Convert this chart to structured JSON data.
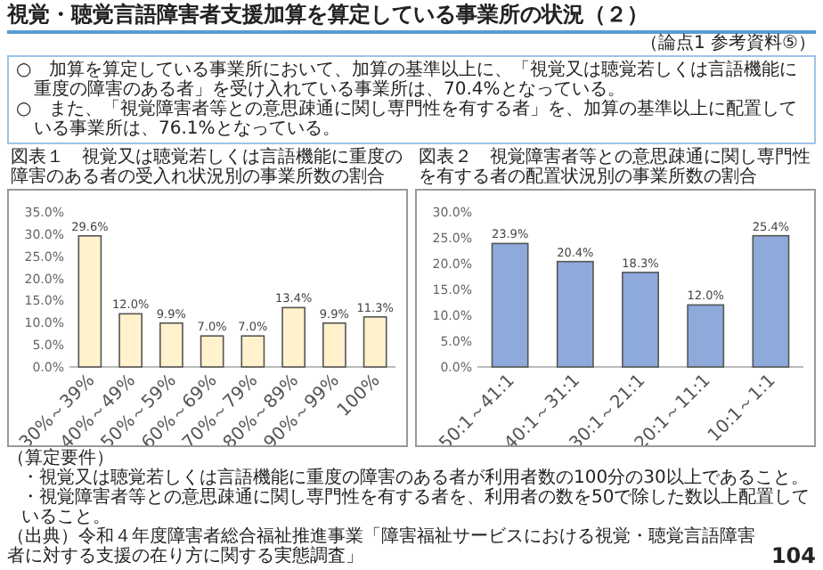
{
  "chart_data": [
    {
      "type": "other",
      "title": "視覚・聴覚言語障害者支援加算を算定している事業所の状況（２）",
      "subtitle": "（論点1 参考資料⑤）",
      "annotations": [
        "○　加算を算定している事業所において、加算の基準以上に、「視覚又は聴覚若しくは言語機能に重度の障害のある者」を受け入れている事業所は、70.4%となっている。",
        "○　また、「視覚障害者等との意思疎通に関し専門性を有する者」を、加算の基準以上に配置している事業所は、76.1%となっている。"
      ]
    },
    {
      "type": "bar",
      "title": "図表１　視覚又は聴覚若しくは言語機能に重度の障害のある者の受入れ状況別の事業所数の割合",
      "categories": [
        "30%～39%",
        "40%～49%",
        "50%～59%",
        "60%～69%",
        "70%～79%",
        "80%～89%",
        "90%～99%",
        "100%"
      ],
      "values": [
        29.6,
        12.0,
        9.9,
        7.0,
        7.0,
        13.4,
        9.9,
        11.3
      ],
      "value_labels": [
        "29.6%",
        "12.0%",
        "9.9%",
        "7.0%",
        "7.0%",
        "13.4%",
        "9.9%",
        "11.3%"
      ],
      "color": "#fff2cc",
      "ylim": [
        0,
        35
      ],
      "yticks": [
        {
          "value": 0,
          "label": "0.0%"
        },
        {
          "value": 5,
          "label": "5.0%"
        },
        {
          "value": 10,
          "label": "10.0%"
        },
        {
          "value": 15,
          "label": "15.0%"
        },
        {
          "value": 20,
          "label": "20.0%"
        },
        {
          "value": 25,
          "label": "25.0%"
        },
        {
          "value": 30,
          "label": "30.0%"
        },
        {
          "value": 35,
          "label": "35.0%"
        }
      ]
    },
    {
      "type": "bar",
      "title": "図表２　視覚障害者等との意思疎通に関し専門性を有する者の配置状況別の事業所数の割合",
      "categories": [
        "50:1～41:1",
        "40:1～31:1",
        "30:1～21:1",
        "20:1～11:1",
        "10:1～1:1"
      ],
      "values": [
        23.9,
        20.4,
        18.3,
        12.0,
        25.4
      ],
      "value_labels": [
        "23.9%",
        "20.4%",
        "18.3%",
        "12.0%",
        "25.4%"
      ],
      "color": "#8eaadb",
      "ylim": [
        0,
        30
      ],
      "yticks": [
        {
          "value": 0,
          "label": "0.0%"
        },
        {
          "value": 5,
          "label": "5.0%"
        },
        {
          "value": 10,
          "label": "10.0%"
        },
        {
          "value": 15,
          "label": "15.0%"
        },
        {
          "value": 20,
          "label": "20.0%"
        },
        {
          "value": 25,
          "label": "25.0%"
        },
        {
          "value": 30,
          "label": "30.0%"
        }
      ]
    },
    {
      "type": "other",
      "annotations": [
        "（算定要件）",
        "・視覚又は聴覚若しくは言語機能に重度の障害のある者が利用者数の100分の30以上であること。",
        "・視覚障害者等との意思疎通に関し専門性を有する者を、利用者の数を50で除した数以上配置していること。",
        "（出典）令和４年度障害者総合福祉推進事業「障害福祉サービスにおける視覚・聴覚言語障害者に対する支援の在り方に関する実態調査」",
        "104"
      ]
    }
  ]
}
